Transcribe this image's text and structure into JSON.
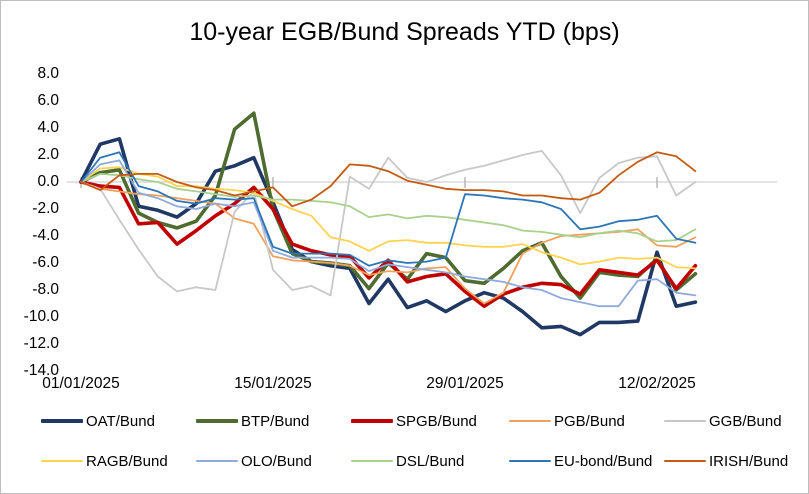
{
  "chart_data": {
    "type": "line",
    "title": "10-year EGB/Bund Spreads YTD (bps)",
    "xlabel": "",
    "ylabel": "",
    "ylim": [
      -14.0,
      8.0
    ],
    "grid": "zero-line-only",
    "legend_position": "bottom-two-rows",
    "y_ticks": [
      8,
      6,
      4,
      2,
      0,
      -2,
      -4,
      -6,
      -8,
      -10,
      -12,
      -14
    ],
    "y_tick_labels": [
      "8.0",
      "6.0",
      "4.0",
      "2.0",
      "0.0",
      "-2.0",
      "-4.0",
      "-6.0",
      "-8.0",
      "-10.0",
      "-12.0",
      "-14.0"
    ],
    "x_axis_tick_labels": [
      "01/01/2025",
      "15/01/2025",
      "29/01/2025",
      "12/02/2025"
    ],
    "x_tick_indices": [
      0,
      10,
      20,
      30
    ],
    "dates": [
      "01/01",
      "02/01",
      "03/01",
      "06/01",
      "07/01",
      "08/01",
      "09/01",
      "10/01",
      "13/01",
      "14/01",
      "15/01",
      "16/01",
      "17/01",
      "20/01",
      "21/01",
      "22/01",
      "23/01",
      "24/01",
      "27/01",
      "28/01",
      "29/01",
      "30/01",
      "31/01",
      "03/02",
      "04/02",
      "05/02",
      "06/02",
      "07/02",
      "10/02",
      "11/02",
      "12/02",
      "13/02",
      "14/02"
    ],
    "series": [
      {
        "name": "OAT/Bund",
        "color": "#1F3864",
        "width": 3.6,
        "values": [
          0,
          2.8,
          3.2,
          -1.8,
          -2.1,
          -2.6,
          -1.6,
          0.8,
          1.2,
          1.8,
          -1.5,
          -5.0,
          -5.9,
          -6.2,
          -6.4,
          -9.0,
          -7.2,
          -9.3,
          -8.8,
          -9.6,
          -8.8,
          -8.2,
          -8.6,
          -9.6,
          -10.8,
          -10.7,
          -11.3,
          -10.4,
          -10.4,
          -10.3,
          -5.2,
          -9.2,
          -8.9
        ]
      },
      {
        "name": "BTP/Bund",
        "color": "#4E6B30",
        "width": 3.6,
        "values": [
          0,
          0.7,
          0.9,
          -2.3,
          -3.0,
          -3.4,
          -2.9,
          -1.0,
          3.9,
          5.1,
          -2.0,
          -5.3,
          -5.9,
          -6.0,
          -6.2,
          -7.9,
          -6.0,
          -7.2,
          -5.3,
          -5.6,
          -7.3,
          -7.5,
          -6.4,
          -5.1,
          -4.5,
          -7.0,
          -8.6,
          -6.7,
          -6.9,
          -7.0,
          -5.7,
          -8.0,
          -6.8
        ]
      },
      {
        "name": "SPGB/Bund",
        "color": "#C00000",
        "width": 3.6,
        "values": [
          0,
          -0.3,
          -0.4,
          -3.1,
          -3.0,
          -4.6,
          -3.6,
          -2.5,
          -1.6,
          -0.4,
          -2.0,
          -4.6,
          -5.1,
          -5.4,
          -5.5,
          -7.1,
          -5.8,
          -7.4,
          -7.0,
          -6.8,
          -8.1,
          -9.2,
          -8.3,
          -7.8,
          -7.5,
          -7.6,
          -8.3,
          -6.5,
          -6.7,
          -6.9,
          -5.8,
          -7.9,
          -6.2
        ]
      },
      {
        "name": "PGB/Bund",
        "color": "#F2A15C",
        "width": 1.8,
        "values": [
          0,
          -0.5,
          -0.7,
          -0.9,
          -1.0,
          -1.2,
          -1.4,
          -1.6,
          -2.7,
          -3.1,
          -5.5,
          -5.8,
          -5.9,
          -6.0,
          -6.2,
          -6.9,
          -6.6,
          -6.7,
          -6.4,
          -6.3,
          -7.9,
          -9.0,
          -8.2,
          -5.3,
          -4.5,
          -4.0,
          -3.9,
          -3.8,
          -3.7,
          -3.5,
          -4.7,
          -4.8,
          -4.1
        ]
      },
      {
        "name": "GGB/Bund",
        "color": "#C8C8C8",
        "width": 1.8,
        "values": [
          0,
          -0.5,
          -2.8,
          -5.0,
          -7.0,
          -8.1,
          -7.8,
          -8.0,
          -2.2,
          -0.7,
          -6.5,
          -8.0,
          -7.7,
          -8.4,
          0.4,
          -0.5,
          1.8,
          0.3,
          0.0,
          0.5,
          0.9,
          1.2,
          1.6,
          2.0,
          2.3,
          0.5,
          -2.3,
          0.3,
          1.4,
          1.8,
          1.9,
          -1.0,
          0.0
        ]
      },
      {
        "name": "RAGB/Bund",
        "color": "#FFD350",
        "width": 1.8,
        "values": [
          0,
          1.0,
          1.1,
          0.6,
          0.4,
          -0.3,
          -0.3,
          -0.5,
          -0.6,
          -0.8,
          -1.4,
          -2.0,
          -2.5,
          -4.1,
          -4.4,
          -5.1,
          -4.4,
          -4.3,
          -4.5,
          -4.5,
          -4.7,
          -4.8,
          -4.8,
          -4.6,
          -5.2,
          -5.6,
          -6.1,
          -5.9,
          -5.6,
          -5.7,
          -5.6,
          -6.3,
          -6.4
        ]
      },
      {
        "name": "OLO/Bund",
        "color": "#8FAADC",
        "width": 1.8,
        "values": [
          0,
          1.3,
          1.6,
          -0.8,
          -1.2,
          -1.8,
          -2.0,
          -1.6,
          -1.8,
          -1.5,
          -5.1,
          -5.6,
          -5.6,
          -5.6,
          -5.7,
          -6.6,
          -6.1,
          -6.3,
          -6.5,
          -6.7,
          -7.0,
          -7.2,
          -7.4,
          -7.8,
          -8.0,
          -8.6,
          -8.9,
          -9.2,
          -9.2,
          -7.3,
          -7.2,
          -8.2,
          -8.4
        ]
      },
      {
        "name": "DSL/Bund",
        "color": "#A9D18E",
        "width": 1.8,
        "values": [
          0,
          0.6,
          0.5,
          0.2,
          0.0,
          -0.5,
          -0.7,
          -0.9,
          -1.1,
          -1.0,
          -1.3,
          -1.3,
          -1.4,
          -1.5,
          -1.8,
          -2.6,
          -2.4,
          -2.7,
          -2.5,
          -2.6,
          -2.8,
          -3.0,
          -3.2,
          -3.6,
          -3.7,
          -3.9,
          -4.1,
          -3.8,
          -3.6,
          -3.8,
          -4.4,
          -4.3,
          -3.5
        ]
      },
      {
        "name": "EU-bond/Bund",
        "color": "#2E75B6",
        "width": 1.8,
        "values": [
          0,
          1.8,
          2.2,
          -0.3,
          -0.7,
          -1.4,
          -1.6,
          -1.2,
          -1.3,
          -1.2,
          -4.8,
          -5.3,
          -5.3,
          -5.3,
          -5.4,
          -6.2,
          -5.8,
          -6.0,
          -5.9,
          -5.6,
          -0.9,
          -1.0,
          -1.2,
          -1.3,
          -1.5,
          -2.0,
          -3.5,
          -3.3,
          -2.9,
          -2.8,
          -2.5,
          -4.2,
          -4.5
        ]
      },
      {
        "name": "IRISH/Bund",
        "color": "#C55A11",
        "width": 1.8,
        "values": [
          0,
          -0.6,
          0.5,
          0.6,
          0.6,
          0.0,
          -0.4,
          -0.6,
          -1.0,
          -0.7,
          -0.4,
          -1.8,
          -1.3,
          -0.3,
          1.3,
          1.2,
          0.8,
          0.1,
          -0.2,
          -0.5,
          -0.6,
          -0.6,
          -0.7,
          -1.0,
          -1.0,
          -1.2,
          -1.3,
          -0.8,
          0.5,
          1.5,
          2.2,
          1.9,
          0.8
        ]
      }
    ],
    "legend_rows": [
      [
        0,
        1,
        2,
        3,
        4
      ],
      [
        5,
        6,
        7,
        8,
        9
      ]
    ],
    "colors": {
      "zero_line": "#D9D9D9",
      "tick_mark": "#A6A6A6",
      "text": "#000000"
    }
  }
}
